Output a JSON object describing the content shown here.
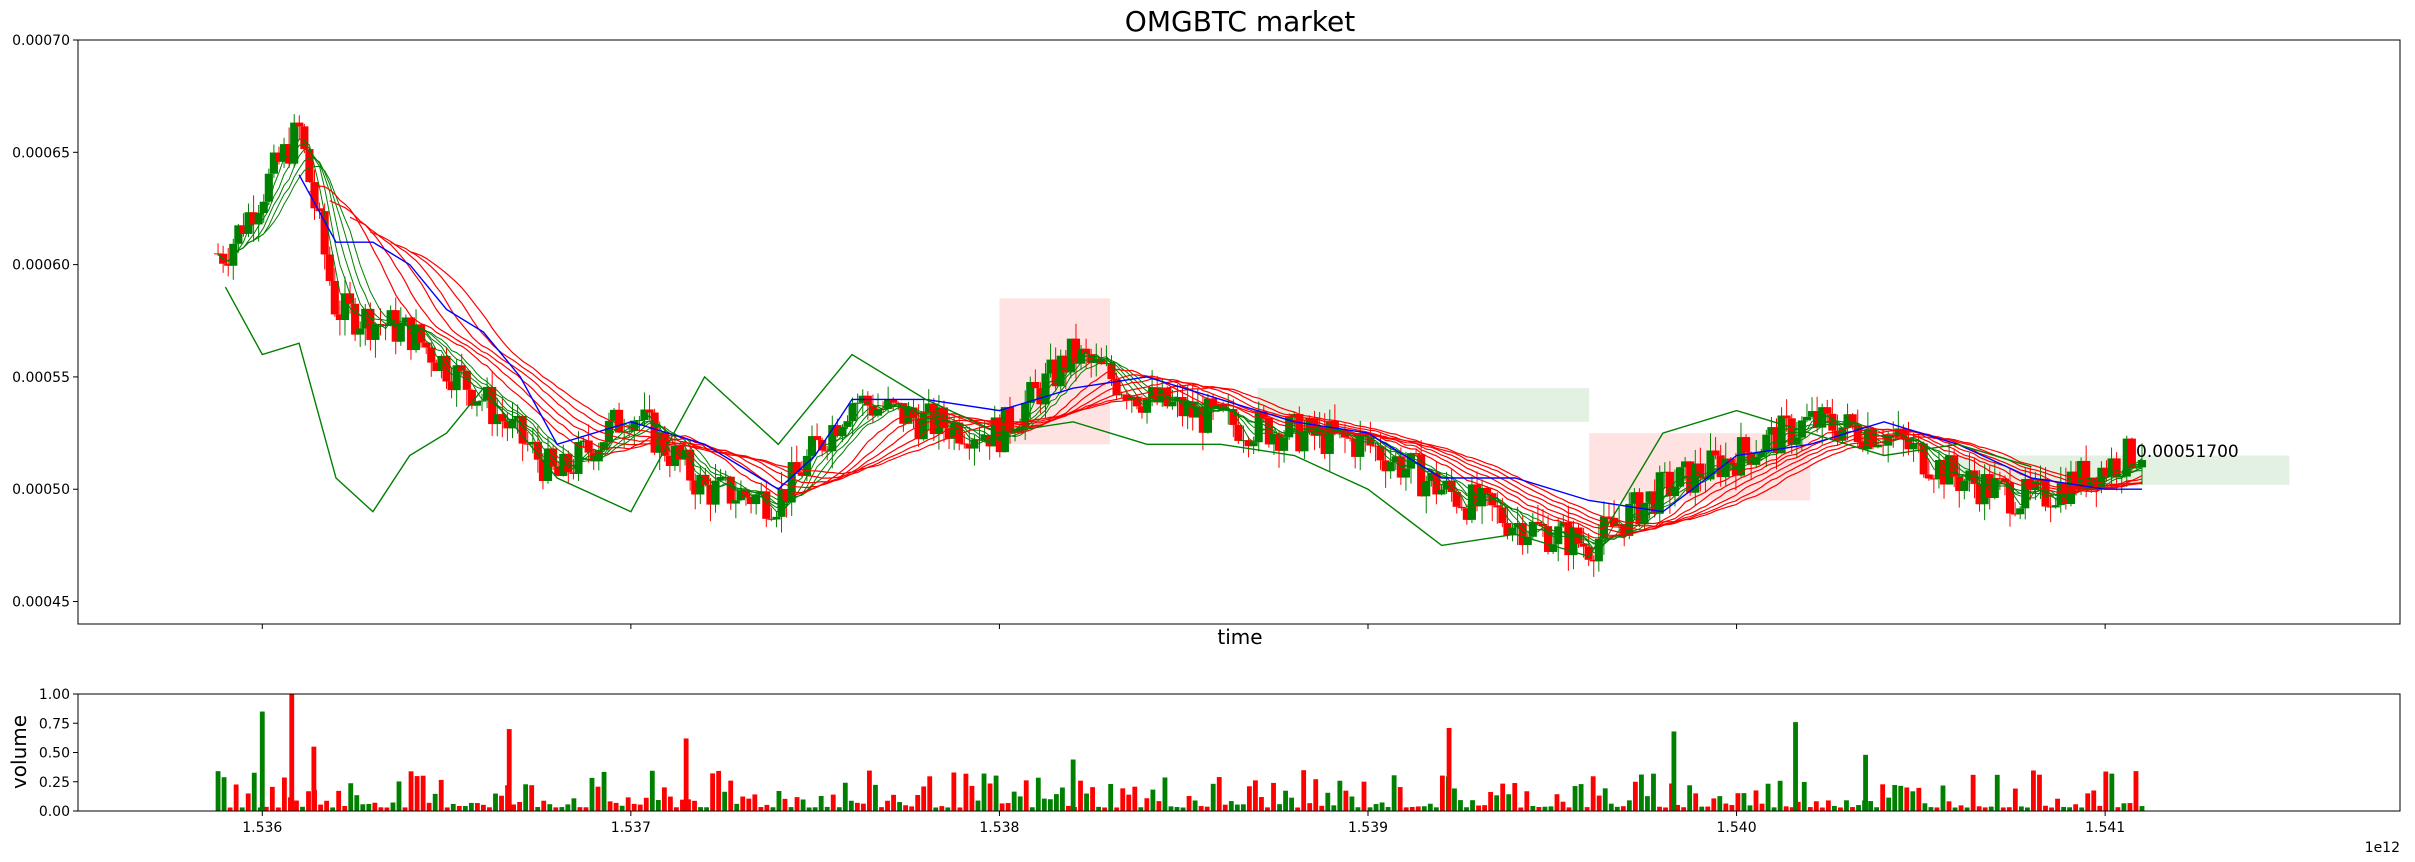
{
  "chart_data": [
    {
      "type": "candlestick",
      "title": "OMGBTC market",
      "xlabel": "time",
      "ylabel": "",
      "xlim": [
        1.5355,
        1.5418
      ],
      "ylim": [
        0.00044,
        0.0007
      ],
      "x_ticks": [
        "1.536",
        "1.537",
        "1.538",
        "1.539",
        "1.540",
        "1.541"
      ],
      "x_tick_values": [
        1.536,
        1.537,
        1.538,
        1.539,
        1.54,
        1.541
      ],
      "y_ticks": [
        "0.00045",
        "0.00050",
        "0.00055",
        "0.00060",
        "0.00065",
        "0.00070"
      ],
      "y_tick_values": [
        0.00045,
        0.0005,
        0.00055,
        0.0006,
        0.00065,
        0.0007
      ],
      "last_price_label": "0.00051700",
      "x_offset_label": "1e12",
      "up_color": "#008000",
      "down_color": "#ff0000",
      "series": [
        {
          "kind": "close_trend",
          "x": [
            1.5359,
            1.5361,
            1.5362,
            1.5364,
            1.5366,
            1.5368,
            1.537,
            1.5372,
            1.5374,
            1.5376,
            1.5378,
            1.538,
            1.5382,
            1.5384,
            1.5386,
            1.5388,
            1.539,
            1.5392,
            1.5394,
            1.5396,
            1.5398,
            1.54,
            1.5402,
            1.5404,
            1.5406,
            1.5408,
            1.541,
            1.5411
          ],
          "values": [
            0.000605,
            0.00066,
            0.00058,
            0.00057,
            0.00054,
            0.000505,
            0.000535,
            0.0005,
            0.000495,
            0.00054,
            0.00053,
            0.000525,
            0.00056,
            0.00054,
            0.00053,
            0.000525,
            0.00052,
            0.0005,
            0.000485,
            0.000475,
            0.0005,
            0.000515,
            0.00053,
            0.000525,
            0.000505,
            0.000495,
            0.00051,
            0.000517
          ]
        },
        {
          "kind": "kijun_blue",
          "color": "#0000ff",
          "x": [
            1.5361,
            1.5362,
            1.5363,
            1.5364,
            1.5365,
            1.5366,
            1.5367,
            1.5368,
            1.537,
            1.5372,
            1.5374,
            1.5375,
            1.5376,
            1.5378,
            1.538,
            1.5382,
            1.5384,
            1.5386,
            1.5388,
            1.539,
            1.5392,
            1.5394,
            1.5396,
            1.5398,
            1.54,
            1.5402,
            1.5404,
            1.5406,
            1.5408,
            1.541,
            1.5411
          ],
          "values": [
            0.00064,
            0.00061,
            0.00061,
            0.0006,
            0.00058,
            0.00057,
            0.00055,
            0.00052,
            0.00053,
            0.00052,
            0.0005,
            0.000515,
            0.00054,
            0.00054,
            0.000535,
            0.000545,
            0.00055,
            0.00054,
            0.00053,
            0.000525,
            0.000505,
            0.000505,
            0.000495,
            0.00049,
            0.000515,
            0.00052,
            0.00053,
            0.00052,
            0.000505,
            0.0005,
            0.0005
          ]
        },
        {
          "kind": "lagging_green",
          "color": "#008000",
          "x": [
            1.5359,
            1.536,
            1.5361,
            1.5362,
            1.5363,
            1.5364,
            1.5365,
            1.5366,
            1.5367,
            1.5368,
            1.537,
            1.5372,
            1.5374,
            1.5376,
            1.5378,
            1.538,
            1.5382,
            1.5384,
            1.5386,
            1.5388,
            1.539,
            1.5392,
            1.5394,
            1.5396,
            1.5398,
            1.54,
            1.5402,
            1.5404,
            1.5406,
            1.5408
          ],
          "values": [
            0.00059,
            0.00056,
            0.000565,
            0.000505,
            0.00049,
            0.000515,
            0.000525,
            0.000545,
            0.000525,
            0.000505,
            0.00049,
            0.00055,
            0.00052,
            0.00056,
            0.00054,
            0.000525,
            0.00053,
            0.00052,
            0.00052,
            0.000515,
            0.0005,
            0.000475,
            0.00048,
            0.00047,
            0.000525,
            0.000535,
            0.000525,
            0.000515,
            0.00052,
            0.00051
          ]
        }
      ],
      "cloud_bands": [
        {
          "x_start": 1.538,
          "x_end": 1.5383,
          "top": 0.000585,
          "bottom": 0.00052,
          "color": "#ffcccc"
        },
        {
          "x_start": 1.5387,
          "x_end": 1.5396,
          "top": 0.000545,
          "bottom": 0.00053,
          "color": "#cce5cc"
        },
        {
          "x_start": 1.5396,
          "x_end": 1.5402,
          "top": 0.000525,
          "bottom": 0.000495,
          "color": "#ffcccc"
        },
        {
          "x_start": 1.5406,
          "x_end": 1.5415,
          "top": 0.000515,
          "bottom": 0.000502,
          "color": "#cce5cc"
        }
      ]
    },
    {
      "type": "bar",
      "title": "",
      "xlabel": "",
      "ylabel": "volume",
      "ylim": [
        0,
        1
      ],
      "y_ticks": [
        "0.00",
        "0.25",
        "0.50",
        "0.75",
        "1.00"
      ],
      "y_tick_values": [
        0,
        0.25,
        0.5,
        0.75,
        1.0
      ],
      "x_ticks": [
        "1.536",
        "1.537",
        "1.538",
        "1.539",
        "1.540",
        "1.541"
      ],
      "x_tick_values": [
        1.536,
        1.537,
        1.538,
        1.539,
        1.54,
        1.541
      ],
      "x_offset_label": "1e12",
      "peaks": [
        {
          "x": 1.536,
          "value": 0.85,
          "color": "#008000"
        },
        {
          "x": 1.53608,
          "value": 1.0,
          "color": "#ff0000"
        },
        {
          "x": 1.53614,
          "value": 0.55,
          "color": "#ff0000"
        },
        {
          "x": 1.53667,
          "value": 0.7,
          "color": "#ff0000"
        },
        {
          "x": 1.53715,
          "value": 0.62,
          "color": "#ff0000"
        },
        {
          "x": 1.5382,
          "value": 0.44,
          "color": "#008000"
        },
        {
          "x": 1.53922,
          "value": 0.71,
          "color": "#ff0000"
        },
        {
          "x": 1.53983,
          "value": 0.68,
          "color": "#008000"
        },
        {
          "x": 1.54016,
          "value": 0.76,
          "color": "#008000"
        },
        {
          "x": 1.54035,
          "value": 0.48,
          "color": "#008000"
        }
      ]
    }
  ]
}
